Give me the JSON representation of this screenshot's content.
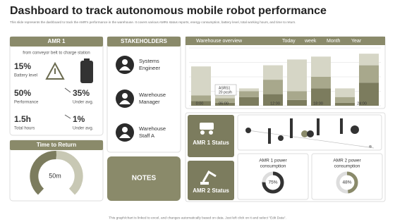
{
  "header": {
    "title": "Dashboard to track autonomous mobile robot performance",
    "subtitle": "This slide represents the dashboard to track the AMR's performance in the warehouse. It covers various AMRs status reports, energy consumption, battery level, total working hours, and time to return."
  },
  "amr1": {
    "title": "AMR 1",
    "route": "from conveyor  belt to charge station",
    "metrics": [
      {
        "value": "15%",
        "label": "Battery level"
      },
      {
        "value": "50%",
        "label": "Performance"
      },
      {
        "value": "35%",
        "label": "Under avg."
      },
      {
        "value": "1.5h",
        "label": "Total hours"
      },
      {
        "value": "1%",
        "label": "Under avg."
      }
    ]
  },
  "time_to_return": {
    "title": "Time to Return",
    "value": "50m"
  },
  "stakeholders": {
    "title": "STAKEHOLDERS",
    "people": [
      [
        "Systems",
        "Engineer"
      ],
      [
        "Warehouse",
        "Manager"
      ],
      [
        "Warehouse",
        "Staff A"
      ]
    ]
  },
  "notes": "NOTES",
  "warehouse": {
    "title": "Warehouse overview",
    "periods": [
      "Today",
      "week",
      "Month",
      "Year"
    ],
    "x_labels": [
      "0:00",
      "06:00",
      "12:00",
      "18:00",
      "24:00"
    ],
    "tooltip": [
      "ASRS1",
      "20 pcs/h"
    ],
    "ylim": [
      0,
      100
    ],
    "series": [
      {
        "color": "#7c7c5e",
        "values": [
          8,
          5,
          15,
          20,
          10,
          30,
          5,
          40
        ]
      },
      {
        "color": "#a8a88c",
        "values": [
          10,
          8,
          10,
          25,
          15,
          20,
          10,
          30
        ]
      },
      {
        "color": "#d6d6c6",
        "values": [
          50,
          20,
          5,
          25,
          55,
          35,
          15,
          20
        ]
      }
    ]
  },
  "status": {
    "amr1": "AMR 1 Status",
    "amr2": "AMR 2 Status"
  },
  "power": [
    {
      "label": [
        "AMR 1 power",
        "consumption"
      ],
      "value": 75,
      "value_label": "75%"
    },
    {
      "label": [
        "AMR 2 power",
        "consumption"
      ],
      "value": 48,
      "value_label": "48%"
    }
  ],
  "footer": "This graph/chart is linked to excel, and changes automatically based on data. Just left click on it and select \"Edit Data\"."
}
